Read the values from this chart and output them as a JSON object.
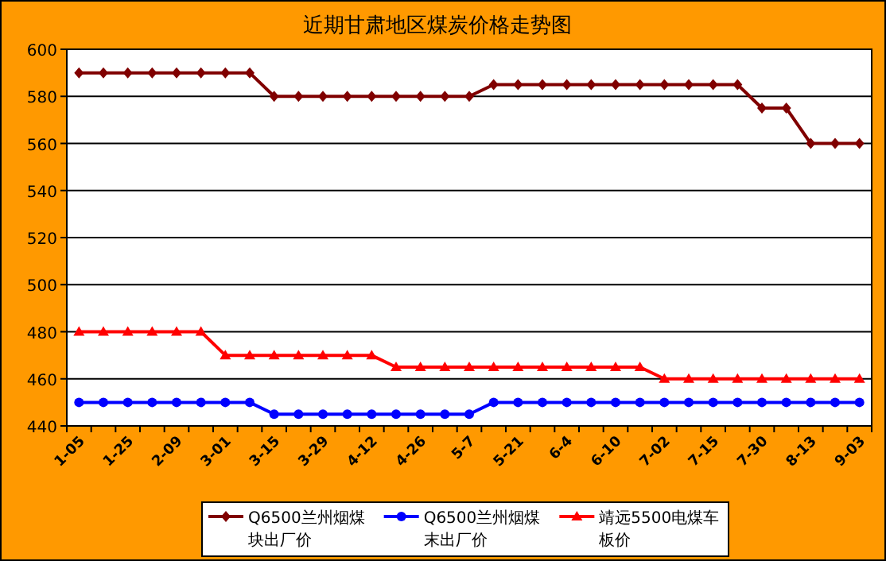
{
  "chart_data": {
    "type": "line",
    "title": "近期甘肃地区煤炭价格走势图",
    "categories": [
      "1-05",
      null,
      "1-25",
      null,
      "2-09",
      null,
      "3-01",
      null,
      "3-15",
      null,
      "3-29",
      null,
      "4-12",
      null,
      "4-26",
      null,
      "5-7",
      null,
      "5-21",
      null,
      "6-4",
      null,
      "6-10",
      null,
      "7-02",
      null,
      "7-15",
      null,
      "7-30",
      null,
      "8-13",
      null,
      "9-03"
    ],
    "series": [
      {
        "name": "Q6500兰州烟煤块出厂价",
        "color": "#800000",
        "marker": "diamond",
        "values": [
          590,
          590,
          590,
          590,
          590,
          590,
          590,
          590,
          580,
          580,
          580,
          580,
          580,
          580,
          580,
          580,
          580,
          585,
          585,
          585,
          585,
          585,
          585,
          585,
          585,
          585,
          585,
          585,
          575,
          575,
          560,
          560,
          560
        ]
      },
      {
        "name": "Q6500兰州烟煤末出厂价",
        "color": "#0000ff",
        "marker": "circle",
        "values": [
          450,
          450,
          450,
          450,
          450,
          450,
          450,
          450,
          445,
          445,
          445,
          445,
          445,
          445,
          445,
          445,
          445,
          450,
          450,
          450,
          450,
          450,
          450,
          450,
          450,
          450,
          450,
          450,
          450,
          450,
          450,
          450,
          450
        ]
      },
      {
        "name": "靖远5500电煤车板价",
        "color": "#ff0000",
        "marker": "triangle",
        "values": [
          480,
          480,
          480,
          480,
          480,
          480,
          470,
          470,
          470,
          470,
          470,
          470,
          470,
          465,
          465,
          465,
          465,
          465,
          465,
          465,
          465,
          465,
          465,
          465,
          460,
          460,
          460,
          460,
          460,
          460,
          460,
          460,
          460
        ]
      }
    ],
    "ylim": [
      440,
      600
    ],
    "yticks": [
      440,
      460,
      480,
      500,
      520,
      540,
      560,
      580,
      600
    ],
    "grid": "y",
    "legend": "bottom"
  }
}
